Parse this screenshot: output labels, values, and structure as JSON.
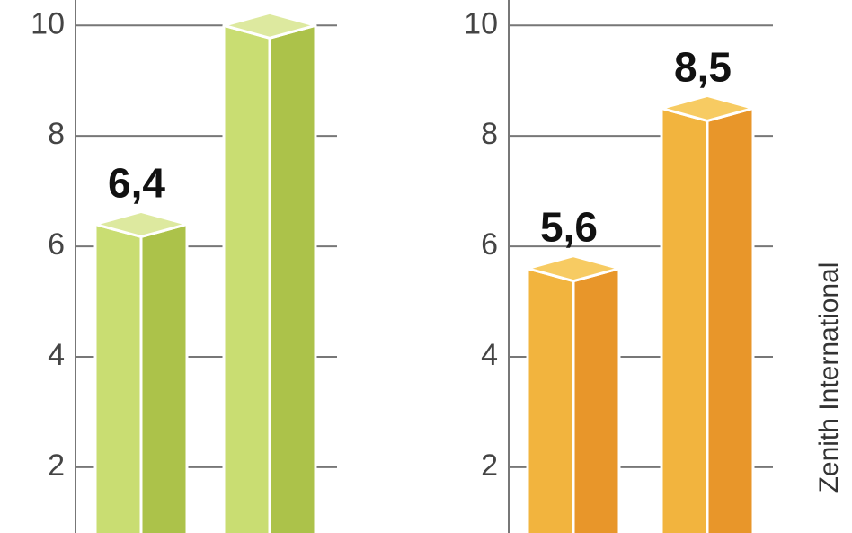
{
  "chart_data": [
    {
      "type": "bar3d",
      "categories": [
        null,
        null
      ],
      "values": [
        6.4,
        10.0
      ],
      "value_labels": [
        "6,4",
        null
      ],
      "colors": {
        "front": "#c9dd72",
        "side": "#acc24a",
        "top": "#dde99f"
      },
      "ylim": [
        0.81,
        10.46
      ],
      "yticks": [
        2,
        4,
        6,
        8,
        10
      ],
      "grid": true
    },
    {
      "type": "bar3d",
      "categories": [
        null,
        null
      ],
      "values": [
        5.6,
        8.5
      ],
      "value_labels": [
        "5,6",
        "8,5"
      ],
      "colors": {
        "front": "#f2b43e",
        "side": "#e8962a",
        "top": "#f7cb62"
      },
      "ylim": [
        0.81,
        10.46
      ],
      "yticks": [
        2,
        4,
        6,
        8,
        10
      ],
      "grid": true
    }
  ],
  "source": "Zenith International"
}
